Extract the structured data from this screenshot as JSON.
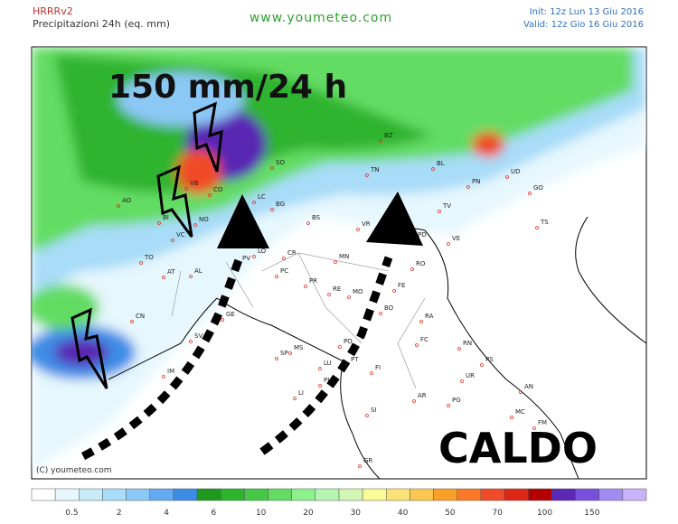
{
  "header": {
    "model": "HRRRv2",
    "field": "Precipitazioni 24h (eq. mm)",
    "site": "www.youmeteo.com",
    "init": "Init: 12z Lun   13 Giu 2016",
    "valid": "Valid: 12z Gio   16 Giu 2016"
  },
  "annotations": {
    "rain": "150 mm/24 h",
    "heat": "CALDO",
    "credit": "(C) youmeteo.com"
  },
  "cities": [
    "AO",
    "VB",
    "CO",
    "SO",
    "BZ",
    "BL",
    "UD",
    "PN",
    "GO",
    "TS",
    "TN",
    "TV",
    "VE",
    "VR",
    "BS",
    "BG",
    "LC",
    "MI",
    "NO",
    "VC",
    "BI",
    "TO",
    "AT",
    "AL",
    "CN",
    "SV",
    "GE",
    "IM",
    "PC",
    "CR",
    "LO",
    "PV",
    "MN",
    "PR",
    "RE",
    "MO",
    "BO",
    "FE",
    "RO",
    "PD",
    "VI",
    "RA",
    "FC",
    "RN",
    "PS",
    "AN",
    "MC",
    "FM",
    "SP",
    "MS",
    "LU",
    "PT",
    "PI",
    "FI",
    "LI",
    "AR",
    "SI",
    "GR",
    "PG",
    "UR",
    "PO"
  ],
  "legend": {
    "colors": [
      "#ffffff",
      "#e6f7fd",
      "#c8ebfa",
      "#a8dcf8",
      "#8cc8f5",
      "#64aaf0",
      "#3c8ce6",
      "#1e9b1e",
      "#2db42d",
      "#46c846",
      "#64dc64",
      "#8cf08c",
      "#b4f5b4",
      "#d2f5b4",
      "#fafa96",
      "#fae178",
      "#fac850",
      "#faa028",
      "#fa7828",
      "#f04b28",
      "#dc2814",
      "#b40000",
      "#5a28b4",
      "#7850dc",
      "#a08cf0",
      "#c8b4fa"
    ],
    "labels": [
      0.5,
      2,
      4,
      6,
      10,
      20,
      30,
      40,
      50,
      70,
      100,
      150
    ]
  }
}
